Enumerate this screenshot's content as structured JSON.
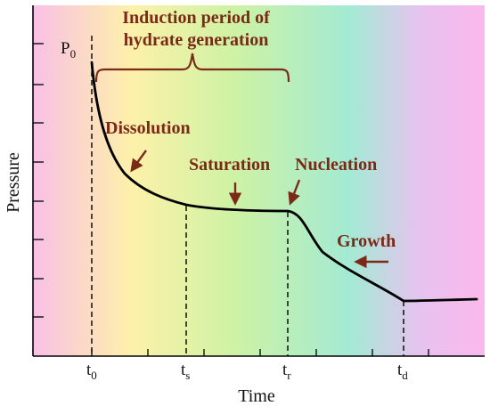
{
  "chart_data": {
    "type": "line",
    "xlabel": "Time",
    "ylabel": "Pressure",
    "x_ticks": [
      {
        "base": "t",
        "sub": "0"
      },
      {
        "base": "t",
        "sub": "s"
      },
      {
        "base": "t",
        "sub": "r"
      },
      {
        "base": "t",
        "sub": "d"
      }
    ],
    "p0_label": {
      "base": "P",
      "sub": "0"
    },
    "annotations": {
      "induction_line1": "Induction period of",
      "induction_line2": "hydrate generation",
      "dissolution": "Dissolution",
      "saturation": "Saturation",
      "nucleation": "Nucleation",
      "growth": "Growth"
    },
    "background_gradient": [
      "#f9c0e6",
      "#fdf1a9",
      "#cdf2a4",
      "#a3ead4",
      "#e7c2ef",
      "#fbb8ec"
    ],
    "annotation_color": "#7b2a17"
  }
}
